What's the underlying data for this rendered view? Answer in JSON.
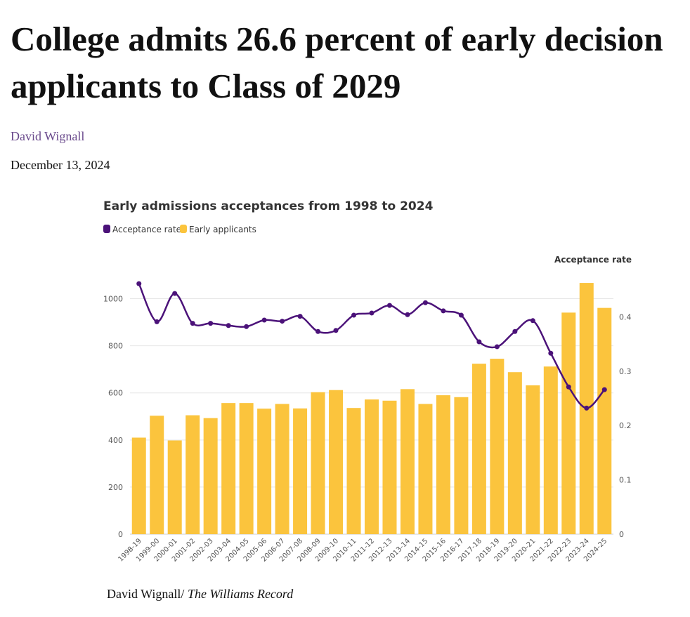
{
  "article": {
    "headline": "College admits 26.6 percent of early decision applicants to Class of 2029",
    "author": "David Wignall",
    "date": "December 13, 2024",
    "credit_author": "David Wignall/",
    "credit_publication": "The Williams Record"
  },
  "colors": {
    "bar": "#fbc43d",
    "line": "#4b1279",
    "grid": "#e6e6e6"
  },
  "chart_data": {
    "type": "bar",
    "title": "Early admissions acceptances from 1998 to 2024",
    "legend": {
      "placement": "top-left",
      "entries": [
        "Acceptance rate",
        "Early applicants"
      ]
    },
    "y_left": {
      "range": [
        0,
        1100
      ],
      "ticks": [
        "0",
        "200",
        "400",
        "600",
        "800",
        "1000"
      ],
      "tick_values": [
        0,
        200,
        400,
        600,
        800,
        1000
      ],
      "title": ""
    },
    "y_right": {
      "range": [
        0,
        0.4767
      ],
      "ticks": [
        "0",
        "0.1",
        "0.2",
        "0.3",
        "0.4"
      ],
      "tick_values": [
        0,
        0.1,
        0.2,
        0.3,
        0.4
      ],
      "title": "Acceptance rate"
    },
    "grid": true,
    "categories": [
      "1998-19",
      "1999-00",
      "2000-01",
      "2001-02",
      "2002-03",
      "2003-04",
      "2004-05",
      "2005-06",
      "2006-07",
      "2007-08",
      "2008-09",
      "2009-10",
      "2010-11",
      "2011-12",
      "2012-13",
      "2013-14",
      "2014-15",
      "2015-16",
      "2016-17",
      "2017-18",
      "2018-19",
      "2019-20",
      "2020-21",
      "2021-22",
      "2022-23",
      "2023-24",
      "2024-25"
    ],
    "series": [
      {
        "name": "Early applicants",
        "type": "bar",
        "axis": "left",
        "values": [
          410,
          503,
          398,
          505,
          493,
          557,
          557,
          533,
          553,
          534,
          603,
          612,
          536,
          572,
          567,
          616,
          553,
          590,
          582,
          724,
          745,
          688,
          632,
          712,
          941,
          1067,
          961
        ]
      },
      {
        "name": "Acceptance rate",
        "type": "line",
        "axis": "right",
        "values": [
          0.461,
          0.391,
          0.443,
          0.388,
          0.388,
          0.384,
          0.382,
          0.394,
          0.392,
          0.401,
          0.373,
          0.375,
          0.403,
          0.407,
          0.421,
          0.404,
          0.426,
          0.411,
          0.403,
          0.354,
          0.345,
          0.373,
          0.393,
          0.333,
          0.271,
          0.232,
          0.266
        ]
      }
    ]
  }
}
